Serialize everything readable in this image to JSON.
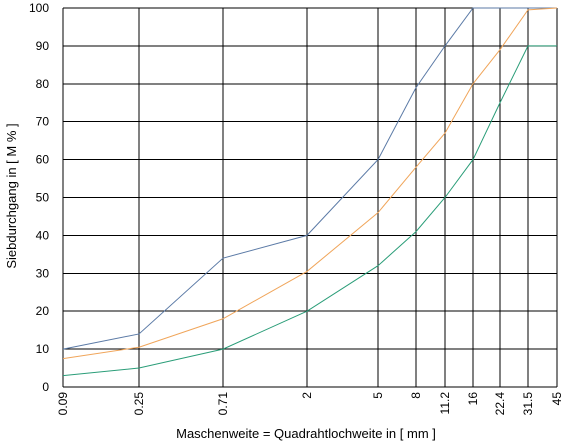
{
  "chart_data": {
    "type": "line",
    "xlabel": "Maschenweite = Quadrahtlochweite in [ mm ]",
    "ylabel": "Siebdurchgang in [ M % ]",
    "x_ticks": [
      "0.09",
      "0.25",
      "0.71",
      "2",
      "5",
      "8",
      "11.2",
      "16",
      "22.4",
      "31.5",
      "45"
    ],
    "y_ticks": [
      "0",
      "10",
      "20",
      "30",
      "40",
      "50",
      "60",
      "70",
      "80",
      "90",
      "100"
    ],
    "ylim": [
      0,
      100
    ],
    "grid": true,
    "colors": {
      "upper": "#5b7aa6",
      "middle": "#f0a55a",
      "lower": "#2a9d78",
      "grid": "#000000"
    },
    "series": [
      {
        "values": [
          10,
          14,
          34,
          40,
          60,
          79,
          90,
          100,
          100,
          100,
          100
        ]
      },
      {
        "values": [
          7.5,
          10.5,
          18,
          30.5,
          46,
          58,
          67,
          80,
          89,
          99.5,
          100
        ]
      },
      {
        "values": [
          3,
          5,
          10,
          20,
          32,
          41,
          50,
          60,
          75,
          90,
          90
        ]
      }
    ]
  }
}
